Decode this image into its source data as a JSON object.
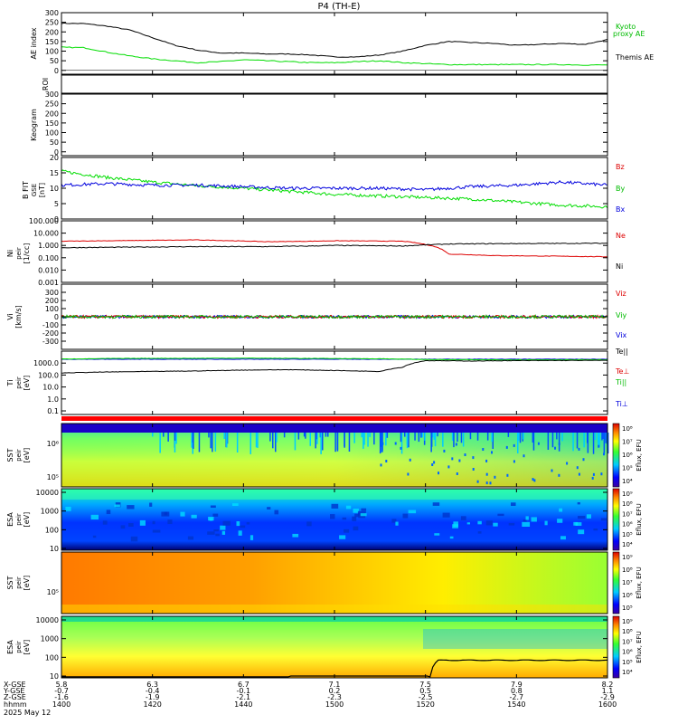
{
  "title": "P4 (TH-E)",
  "chart_data": [
    {
      "type": "line",
      "panel": "ae_index",
      "ylabel": "AE index",
      "ylim": [
        -20,
        300
      ],
      "yticks": [
        "300",
        "250",
        "200",
        "150",
        "100",
        "50",
        "0"
      ],
      "series": [
        {
          "name": "Themis AE",
          "color": "#000000",
          "x": [
            0,
            5,
            10,
            15,
            20,
            25,
            30,
            35,
            40,
            45,
            50,
            55,
            60,
            65,
            70,
            75,
            80,
            85,
            90,
            95,
            100,
            105,
            110,
            115,
            120
          ],
          "y": [
            245,
            243,
            230,
            210,
            170,
            130,
            105,
            90,
            90,
            85,
            85,
            80,
            70,
            70,
            80,
            100,
            130,
            150,
            145,
            140,
            130,
            135,
            140,
            135,
            160
          ]
        },
        {
          "name": "Kyoto proxy AE",
          "color": "#00dd00",
          "x": [
            0,
            5,
            10,
            15,
            20,
            25,
            30,
            35,
            40,
            45,
            50,
            55,
            60,
            65,
            70,
            75,
            80,
            85,
            90,
            95,
            100,
            105,
            110,
            115,
            120
          ],
          "y": [
            120,
            118,
            95,
            75,
            60,
            50,
            40,
            45,
            55,
            50,
            45,
            40,
            40,
            45,
            50,
            40,
            35,
            30,
            30,
            30,
            30,
            30,
            30,
            28,
            28
          ]
        }
      ]
    },
    {
      "type": "line",
      "panel": "roi",
      "ylabel": "ROI"
    },
    {
      "type": "line",
      "panel": "keogram",
      "ylabel": "Keogram",
      "ylim": [
        -20,
        300
      ],
      "yticks": [
        "300",
        "250",
        "200",
        "150",
        "100",
        "50",
        "0"
      ]
    },
    {
      "type": "line",
      "panel": "magnetic_field",
      "ylabel": "B FIT GSE [nT]",
      "ylim": [
        0,
        20
      ],
      "yticks": [
        "20",
        "15",
        "10",
        "5",
        "0"
      ],
      "series": [
        {
          "name": "Bz",
          "color": "#dd0000",
          "x": [],
          "y": []
        },
        {
          "name": "By",
          "color": "#00dd00",
          "x": [
            0,
            10,
            20,
            30,
            40,
            50,
            60,
            70,
            80,
            90,
            100,
            110,
            120
          ],
          "y": [
            15.5,
            13.5,
            12,
            10.8,
            10,
            9,
            8,
            7.5,
            7,
            6.5,
            5.5,
            4.5,
            4
          ]
        },
        {
          "name": "Bx",
          "color": "#0000dd",
          "x": [
            0,
            10,
            20,
            30,
            40,
            50,
            60,
            70,
            80,
            90,
            100,
            110,
            120
          ],
          "y": [
            11,
            11.5,
            11,
            11,
            10.5,
            10,
            10,
            10,
            9.5,
            10.5,
            11,
            12,
            11
          ]
        }
      ]
    },
    {
      "type": "line",
      "panel": "density",
      "ylabel": "Ni peir [1/cc]",
      "yscale": "log",
      "ylim": [
        0.001,
        100
      ],
      "yticks": [
        "100.000",
        "10.000",
        "1.000",
        "0.100",
        "0.010",
        "0.001"
      ],
      "series": [
        {
          "name": "Ne",
          "color": "#dd0000",
          "x": [
            0,
            30,
            45,
            55,
            60,
            75,
            85,
            95,
            120
          ],
          "y": [
            2.2,
            2.8,
            2.0,
            2.2,
            2.4,
            2.2,
            0.2,
            0.15,
            0.12
          ]
        },
        {
          "name": "Ni",
          "color": "#000000",
          "x": [
            0,
            30,
            45,
            55,
            60,
            75,
            85,
            95,
            120
          ],
          "y": [
            0.65,
            0.8,
            0.8,
            0.9,
            1.0,
            0.9,
            1.3,
            1.4,
            1.5
          ]
        }
      ]
    },
    {
      "type": "line",
      "panel": "velocity",
      "ylabel": "Vi [km/s]",
      "ylim": [
        -400,
        400
      ],
      "yticks": [
        "300",
        "200",
        "100",
        "0",
        "-100",
        "-200",
        "-300"
      ],
      "series": [
        {
          "name": "Viz",
          "color": "#dd0000",
          "x": [
            0,
            120
          ],
          "y": [
            0,
            0
          ]
        },
        {
          "name": "Viy",
          "color": "#00dd00",
          "x": [
            0,
            120
          ],
          "y": [
            0,
            0
          ]
        },
        {
          "name": "Vix",
          "color": "#0000dd",
          "x": [
            0,
            120
          ],
          "y": [
            0,
            0
          ]
        }
      ]
    },
    {
      "type": "line",
      "panel": "temperature",
      "ylabel": "Ti peir [eV]",
      "yscale": "log",
      "ylim": [
        0.05,
        10000
      ],
      "yticks": [
        "1000.0",
        "100.0",
        "10.0",
        "1.0",
        "0.1"
      ],
      "series": [
        {
          "name": "Te||",
          "color": "#000000",
          "x": [
            0,
            10,
            20,
            30,
            40,
            50,
            60,
            70,
            75,
            80,
            90,
            100,
            120
          ],
          "y": [
            150,
            180,
            200,
            220,
            260,
            280,
            240,
            200,
            450,
            1600,
            1500,
            1600,
            1700
          ]
        },
        {
          "name": "Te⊥",
          "color": "#dd0000",
          "x": [
            0,
            120
          ],
          "y": [
            2000,
            2000
          ]
        },
        {
          "name": "Ti||",
          "color": "#00dd00",
          "x": [
            0,
            10,
            20,
            30,
            40,
            50,
            60,
            70,
            80,
            90,
            100,
            120
          ],
          "y": [
            2200,
            2400,
            2500,
            2500,
            2600,
            2500,
            2400,
            2300,
            2000,
            1900,
            1900,
            1900
          ]
        },
        {
          "name": "Ti⊥",
          "color": "#0000dd",
          "x": [
            0,
            120
          ],
          "y": [
            2100,
            2100
          ]
        }
      ]
    },
    {
      "type": "heatmap",
      "panel": "sst_electron",
      "ylabel": "SST peir [eV]",
      "yticks": [
        "10⁶",
        "10⁵"
      ],
      "colorbar_label": "Eflux, EFU",
      "colorbar_ticks": [
        "10⁸",
        "10⁷",
        "10⁶",
        "10⁵",
        "10⁴"
      ]
    },
    {
      "type": "heatmap",
      "panel": "esa_electron",
      "ylabel": "ESA peir [eV]",
      "yticks": [
        "10000",
        "1000",
        "100",
        "10"
      ],
      "colorbar_label": "Eflux, EFU",
      "colorbar_ticks": [
        "10⁹",
        "10⁸",
        "10⁷",
        "10⁶",
        "10⁵",
        "10⁴"
      ]
    },
    {
      "type": "heatmap",
      "panel": "sst_ion",
      "ylabel": "SST peir [eV]",
      "yticks": [
        "10⁵"
      ],
      "colorbar_label": "Eflux, EFU",
      "colorbar_ticks": [
        "10⁹",
        "10⁸",
        "10⁷",
        "10⁶",
        "10⁵"
      ]
    },
    {
      "type": "heatmap",
      "panel": "esa_ion",
      "ylabel": "ESA peir [eV]",
      "yticks": [
        "10000",
        "1000",
        "100",
        "10"
      ],
      "colorbar_label": "Eflux, EFU",
      "colorbar_ticks": [
        "10⁹",
        "10⁸",
        "10⁷",
        "10⁶",
        "10⁵",
        "10⁴"
      ]
    }
  ],
  "xaxis": {
    "row_labels": [
      "X-GSE",
      "Y-GSE",
      "Z-GSE",
      "hhmm",
      "2025 May 12"
    ],
    "ticks": [
      {
        "x": "5.8",
        "y": "-0.7",
        "z": "-1.6",
        "t": "1400"
      },
      {
        "x": "6.3",
        "y": "-0.4",
        "z": "-1.9",
        "t": "1420"
      },
      {
        "x": "6.7",
        "y": "-0.1",
        "z": "-2.1",
        "t": "1440"
      },
      {
        "x": "7.1",
        "y": "0.2",
        "z": "-2.3",
        "t": "1500"
      },
      {
        "x": "7.5",
        "y": "0.5",
        "z": "-2.5",
        "t": "1520"
      },
      {
        "x": "7.9",
        "y": "0.8",
        "z": "-2.7",
        "t": "1540"
      },
      {
        "x": "8.2",
        "y": "1.1",
        "z": "-2.9",
        "t": "1600"
      }
    ]
  },
  "legend": {
    "ae": [
      "Kyoto",
      "proxy AE",
      "Themis AE"
    ],
    "b": [
      "Bz",
      "By",
      "Bx"
    ],
    "n": [
      "Ne",
      "Ni"
    ],
    "v": [
      "Viz",
      "Viy",
      "Vix"
    ],
    "t": [
      "Te||",
      "Te⊥",
      "Ti||",
      "Ti⊥"
    ]
  }
}
